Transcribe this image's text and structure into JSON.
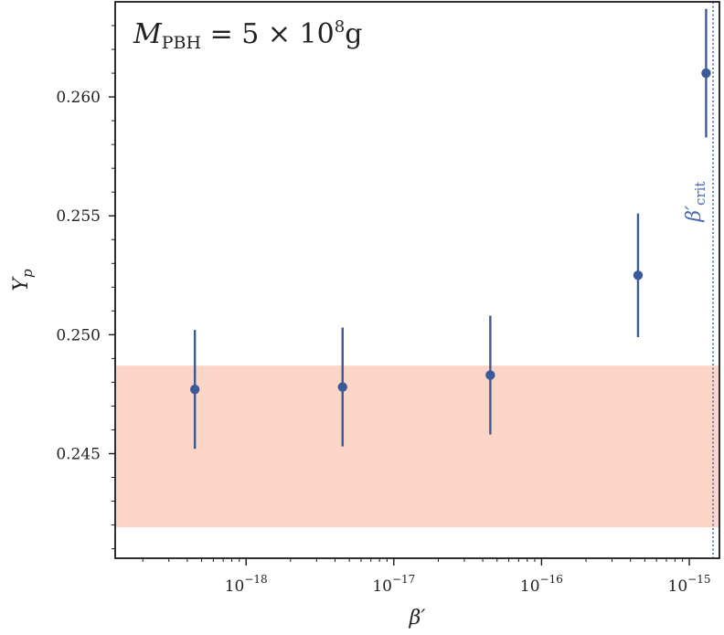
{
  "chart_data": {
    "type": "scatter",
    "annotation": {
      "main": "M",
      "sub": "PBH",
      "rest": " = 5 × 10",
      "sup": "8",
      "unit": "g"
    },
    "xlabel": "β′",
    "ylabel": "Y",
    "ylabel_sub": "p",
    "xscale": "log",
    "xlim": [
      1.3e-19,
      1.6e-15
    ],
    "ylim": [
      0.2406,
      0.264
    ],
    "x_ticks": [
      {
        "value": 1e-18,
        "base": "10",
        "exp": "−18"
      },
      {
        "value": 1e-17,
        "base": "10",
        "exp": "−17"
      },
      {
        "value": 1e-16,
        "base": "10",
        "exp": "−16"
      },
      {
        "value": 1e-15,
        "base": "10",
        "exp": "−15"
      }
    ],
    "y_ticks": [
      {
        "value": 0.245,
        "label": "0.245"
      },
      {
        "value": 0.25,
        "label": "0.250"
      },
      {
        "value": 0.255,
        "label": "0.255"
      },
      {
        "value": 0.26,
        "label": "0.260"
      }
    ],
    "series": [
      {
        "color": "#3b5a9a",
        "points": [
          {
            "x": 4.5e-19,
            "y": 0.2477,
            "yerr": 0.0025
          },
          {
            "x": 4.5e-18,
            "y": 0.2478,
            "yerr": 0.0025
          },
          {
            "x": 4.5e-17,
            "y": 0.2483,
            "yerr": 0.0025
          },
          {
            "x": 4.5e-16,
            "y": 0.2525,
            "yerr": 0.0026
          },
          {
            "x": 1.3e-15,
            "y": 0.261,
            "yerr": 0.0027
          }
        ]
      }
    ],
    "observed_band": {
      "ymin": 0.2419,
      "ymax": 0.2487,
      "color": "#fcd5c7"
    },
    "critical_line": {
      "x": 1.45e-15,
      "label": "β′",
      "label_sub": "crit",
      "color": "#4a6aaf"
    },
    "grid": false
  }
}
